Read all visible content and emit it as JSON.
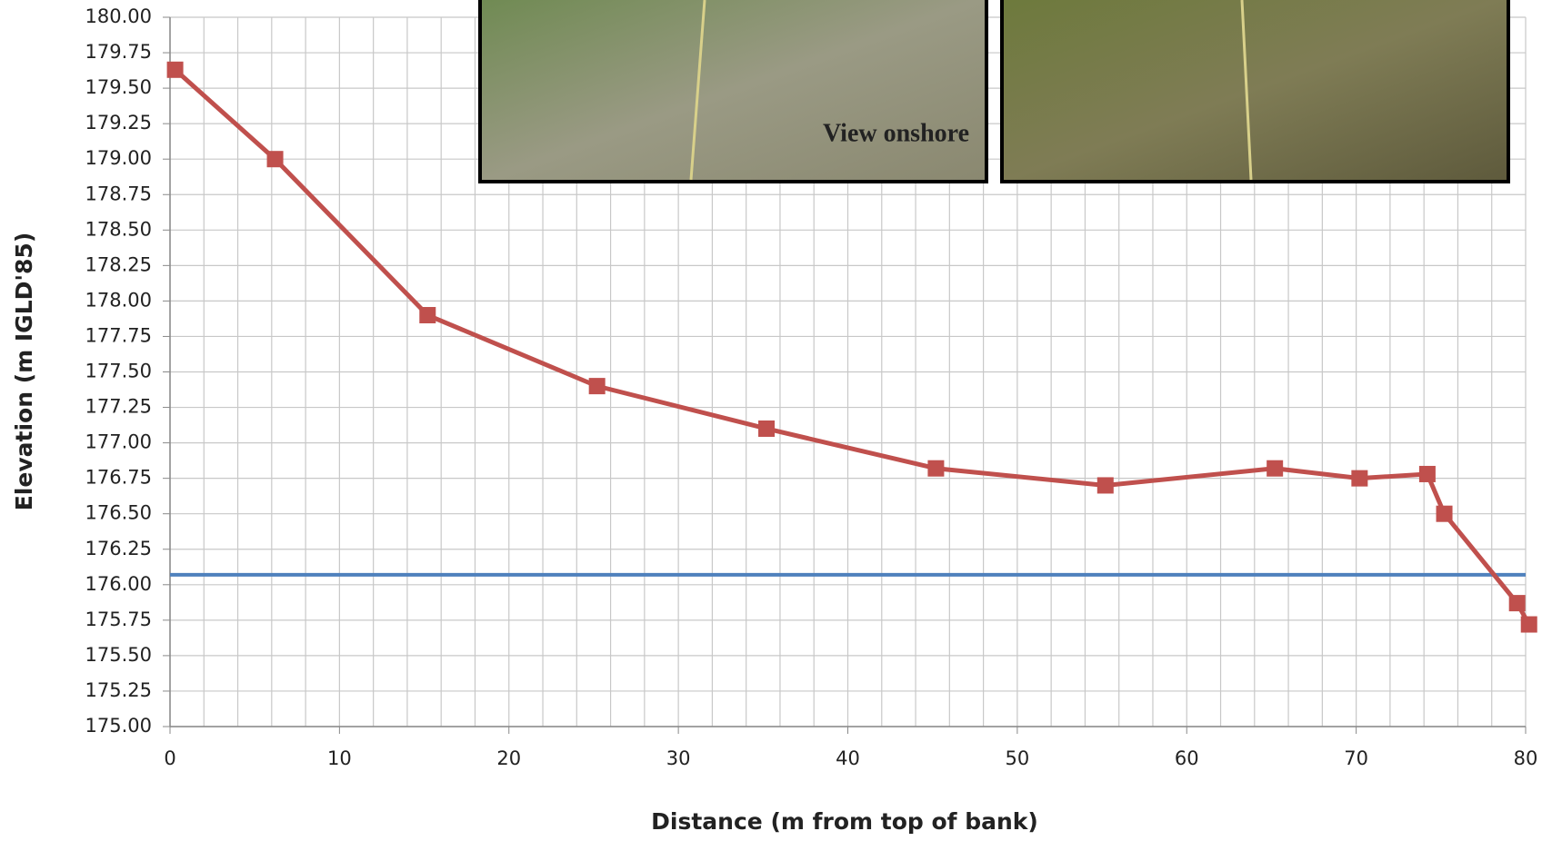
{
  "chart_data": {
    "type": "line",
    "x_label": "Distance (m from top of bank)",
    "y_label": "Elevation (m IGLD'85)",
    "annotation": "View onshore",
    "x": [
      0.3,
      6.2,
      15.2,
      25.2,
      35.2,
      45.2,
      55.2,
      65.2,
      70.2,
      74.2,
      75.2,
      79.5,
      80.2
    ],
    "series": [
      {
        "color": "#c0504d",
        "values": [
          179.63,
          179.0,
          177.9,
          177.4,
          177.1,
          176.82,
          176.7,
          176.82,
          176.75,
          176.78,
          176.5,
          175.87,
          175.72
        ]
      }
    ],
    "reference_line": {
      "value": 176.07,
      "color": "#4f81bd"
    },
    "xlim": [
      0,
      80
    ],
    "xticks": [
      0,
      10,
      20,
      30,
      40,
      50,
      60,
      70,
      80
    ],
    "ylim": [
      175,
      180
    ],
    "yticks": [
      {
        "value": 175,
        "label": "175.00"
      },
      {
        "value": 175.25,
        "label": "175.25"
      },
      {
        "value": 175.5,
        "label": "175.50"
      },
      {
        "value": 175.75,
        "label": "175.75"
      },
      {
        "value": 176,
        "label": "176.00"
      },
      {
        "value": 176.25,
        "label": "176.25"
      },
      {
        "value": 176.5,
        "label": "176.50"
      },
      {
        "value": 176.75,
        "label": "176.75"
      },
      {
        "value": 177,
        "label": "177.00"
      },
      {
        "value": 177.25,
        "label": "177.25"
      },
      {
        "value": 177.5,
        "label": "177.50"
      },
      {
        "value": 177.75,
        "label": "177.75"
      },
      {
        "value": 178,
        "label": "178.00"
      },
      {
        "value": 178.25,
        "label": "178.25"
      },
      {
        "value": 178.5,
        "label": "178.50"
      },
      {
        "value": 178.75,
        "label": "178.75"
      },
      {
        "value": 179,
        "label": "179.00"
      },
      {
        "value": 179.25,
        "label": "179.25"
      },
      {
        "value": 179.5,
        "label": "179.50"
      },
      {
        "value": 179.75,
        "label": "179.75"
      },
      {
        "value": 180,
        "label": "180.00"
      }
    ],
    "grid": true
  }
}
